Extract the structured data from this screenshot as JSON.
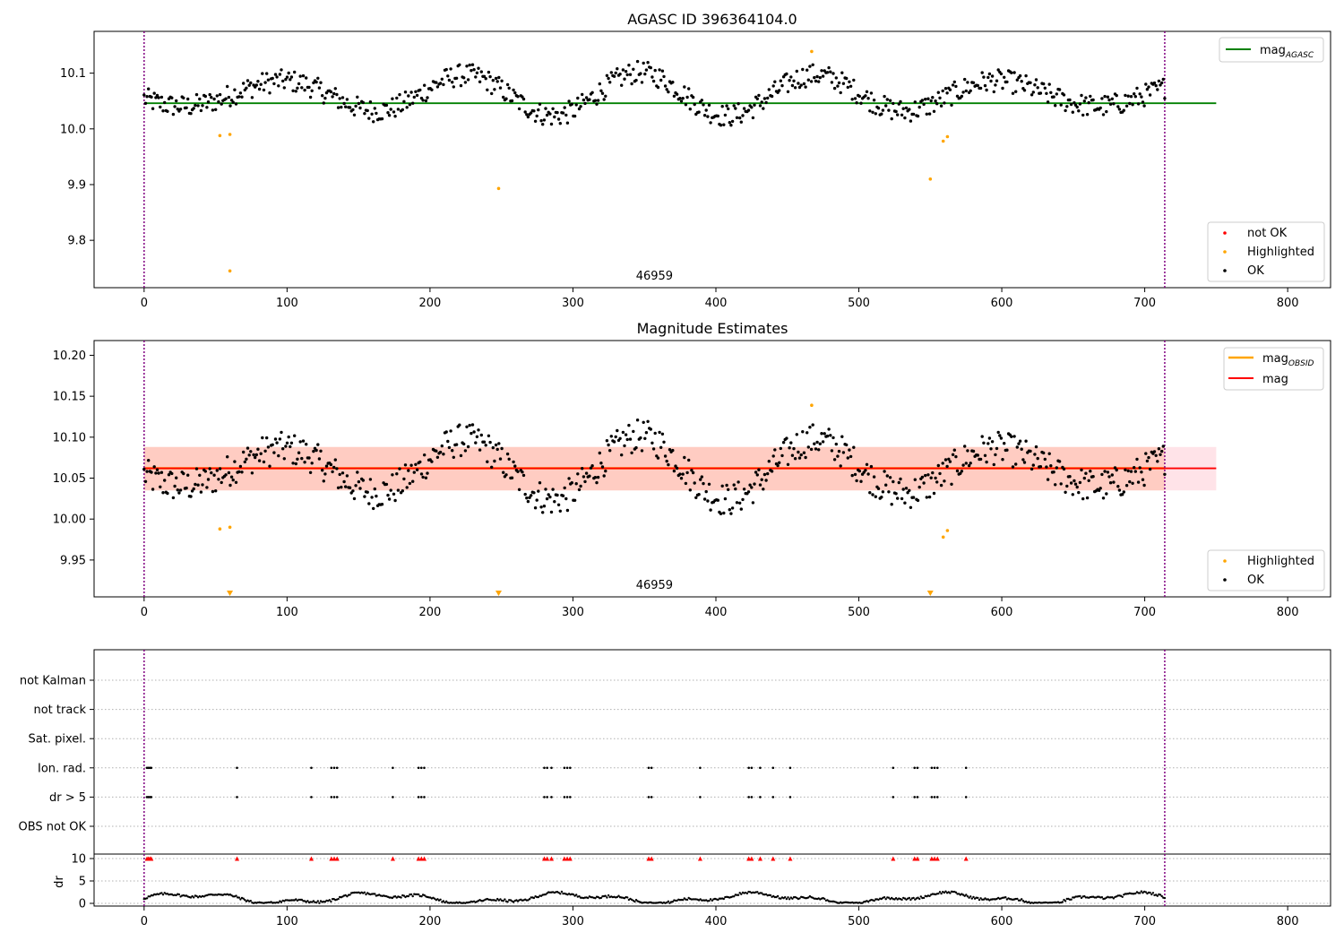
{
  "chart_data": [
    {
      "type": "scatter",
      "title": "AGASC ID 396364104.0",
      "xlim": [
        -35,
        830
      ],
      "ylim": [
        9.715,
        10.175
      ],
      "xticks": [
        0,
        100,
        200,
        300,
        400,
        500,
        600,
        700,
        800
      ],
      "yticks": [
        9.8,
        9.9,
        10.0,
        10.1
      ],
      "ytick_labels": [
        "9.8",
        "9.9",
        "10.0",
        "10.1"
      ],
      "vlines": [
        0,
        714
      ],
      "annotation": {
        "text": "46959",
        "x": 357
      },
      "hline": {
        "name": "mag",
        "sub": "AGASC",
        "y": 10.046,
        "xmax": 750,
        "color": "#008000"
      },
      "series": [
        {
          "name": "not OK",
          "color": "#ff0000",
          "points": []
        },
        {
          "name": "Highlighted",
          "color": "#ffa500",
          "points": [
            [
              53,
              9.988
            ],
            [
              60,
              9.99
            ],
            [
              60,
              9.745
            ],
            [
              248,
              9.893
            ],
            [
              467,
              10.139
            ],
            [
              550,
              9.91
            ],
            [
              559,
              9.978
            ],
            [
              562,
              9.986
            ]
          ]
        },
        {
          "name": "OK",
          "color": "#000000",
          "gen": "obs"
        }
      ],
      "legend_top": {
        "loc": "upper right",
        "entries": [
          "mag_AGASC"
        ]
      },
      "legend_bottom": {
        "loc": "lower right",
        "entries": [
          "not OK",
          "Highlighted",
          "OK"
        ]
      }
    },
    {
      "type": "scatter",
      "title": "Magnitude Estimates",
      "xlim": [
        -35,
        830
      ],
      "ylim": [
        9.905,
        10.218
      ],
      "xticks": [
        0,
        100,
        200,
        300,
        400,
        500,
        600,
        700,
        800
      ],
      "yticks": [
        9.95,
        10.0,
        10.05,
        10.1,
        10.15,
        10.2
      ],
      "ytick_labels": [
        "9.95",
        "10.00",
        "10.05",
        "10.10",
        "10.15",
        "10.20"
      ],
      "vlines": [
        0,
        714
      ],
      "annotation": {
        "text": "46959",
        "x": 357
      },
      "bands": [
        {
          "y0": 10.035,
          "y1": 10.088,
          "xmax": 750,
          "color": "#ffc0cb"
        },
        {
          "y0": 10.035,
          "y1": 10.088,
          "xmax": 714,
          "color": "#ffa07a"
        }
      ],
      "lines": [
        {
          "name": "mag",
          "sub": "OBSID",
          "y": 10.062,
          "xmax": 714,
          "color": "#ffa500",
          "width": 2.5
        },
        {
          "name": "mag",
          "y": 10.062,
          "xmax": 750,
          "color": "#ff0000",
          "width": 1.8
        }
      ],
      "series": [
        {
          "name": "Highlighted",
          "color": "#ffa500",
          "points": [
            [
              53,
              9.988
            ],
            [
              60,
              9.99
            ],
            [
              467,
              10.139
            ],
            [
              559,
              9.978
            ],
            [
              562,
              9.986
            ]
          ],
          "offscale_markers": [
            60,
            248,
            550
          ]
        },
        {
          "name": "OK",
          "color": "#000000",
          "gen": "obs"
        }
      ],
      "legend_top": {
        "loc": "upper right",
        "entries": [
          "mag_OBSID",
          "mag"
        ]
      },
      "legend_bottom": {
        "loc": "lower right",
        "entries": [
          "Highlighted",
          "OK"
        ]
      }
    },
    {
      "type": "scatter",
      "xlim": [
        -35,
        830
      ],
      "xticks": [
        0,
        100,
        200,
        300,
        400,
        500,
        600,
        700,
        800
      ],
      "vlines": [
        0,
        714
      ],
      "flag_rows": [
        "not Kalman",
        "not track",
        "Sat. pixel.",
        "Ion. rad.",
        "dr > 5",
        "OBS not OK"
      ],
      "flag_points": {
        "Ion. rad.": [
          2,
          3,
          4,
          5,
          65,
          117,
          131,
          133,
          135,
          174,
          192,
          194,
          196,
          280,
          282,
          285,
          294,
          296,
          298,
          353,
          355,
          389,
          423,
          425,
          431,
          440,
          452,
          524,
          539,
          541,
          551,
          553,
          555,
          575
        ],
        "dr > 5": [
          2,
          3,
          4,
          5,
          65,
          117,
          131,
          133,
          135,
          174,
          192,
          194,
          196,
          280,
          282,
          285,
          294,
          296,
          298,
          353,
          355,
          389,
          423,
          425,
          431,
          440,
          452,
          524,
          539,
          541,
          551,
          553,
          555,
          575
        ]
      },
      "dr_subplot": {
        "ylabel": "dr",
        "ylim": [
          -0.6,
          11
        ],
        "yticks": [
          0,
          5,
          10
        ],
        "ytick_labels": [
          "0",
          "5",
          "10"
        ],
        "clipped_markers_at": 10,
        "clipped_markers_color": "#ff0000",
        "clipped_markers_x": [
          2,
          3,
          4,
          5,
          65,
          117,
          131,
          133,
          135,
          174,
          192,
          194,
          196,
          280,
          282,
          285,
          294,
          296,
          298,
          353,
          355,
          389,
          423,
          425,
          431,
          440,
          452,
          524,
          539,
          541,
          551,
          553,
          555,
          575
        ]
      }
    }
  ]
}
